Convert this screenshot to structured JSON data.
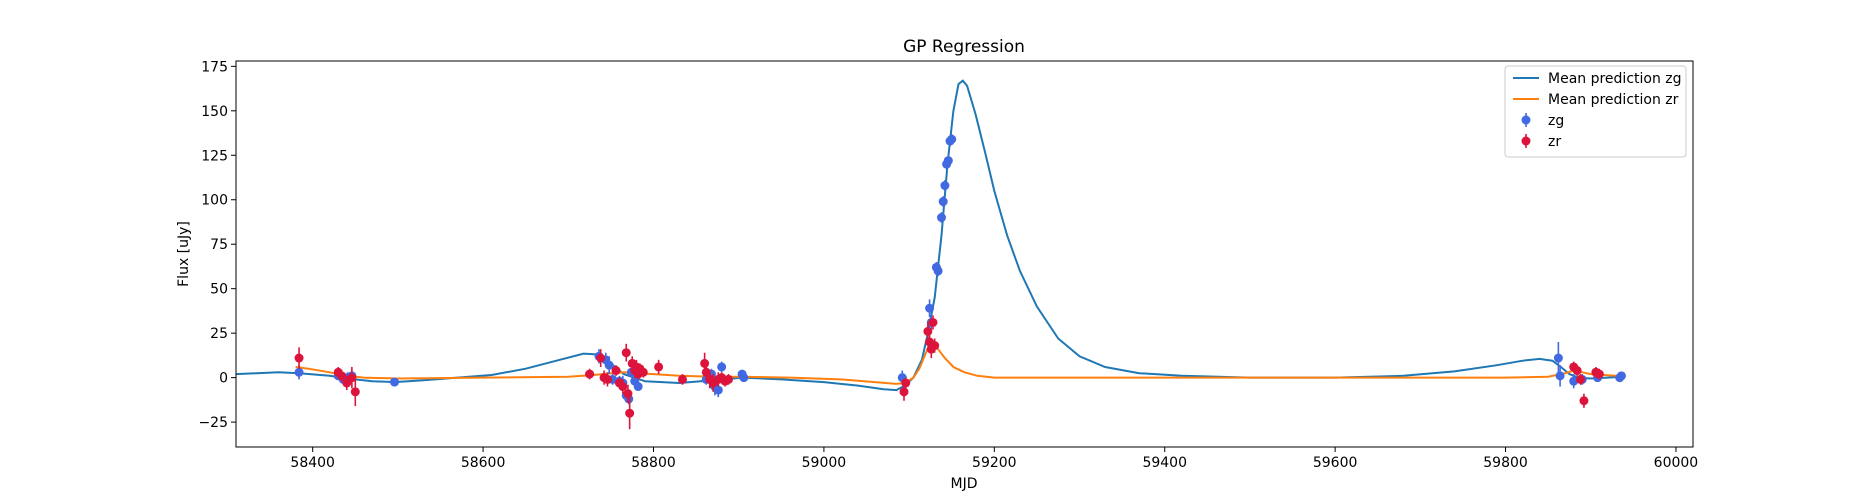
{
  "chart_data": {
    "type": "line",
    "title": "GP Regression",
    "xlabel": "MJD",
    "ylabel": "Flux [uJy]",
    "xlim": [
      58310,
      60020
    ],
    "ylim": [
      -39,
      178
    ],
    "xticks": [
      58400,
      58600,
      58800,
      59000,
      59200,
      59400,
      59600,
      59800,
      60000
    ],
    "yticks": [
      -25,
      0,
      25,
      50,
      75,
      100,
      125,
      150,
      175
    ],
    "grid": false,
    "legend_position": "top-right",
    "colors": {
      "zg_line": "#1f77b4",
      "zr_line": "#ff7f0e",
      "zg_points": "#4169e1",
      "zr_points": "#dc143c"
    },
    "lines": [
      {
        "name": "Mean prediction zg",
        "color": "#1f77b4",
        "points": [
          [
            58310,
            2
          ],
          [
            58360,
            3
          ],
          [
            58384,
            2.5
          ],
          [
            58420,
            1
          ],
          [
            58440,
            -0.5
          ],
          [
            58470,
            -2
          ],
          [
            58496,
            -2.5
          ],
          [
            58530,
            -1.5
          ],
          [
            58570,
            0
          ],
          [
            58610,
            1.5
          ],
          [
            58650,
            5
          ],
          [
            58690,
            10
          ],
          [
            58718,
            13.5
          ],
          [
            58735,
            13
          ],
          [
            58750,
            8
          ],
          [
            58765,
            2
          ],
          [
            58790,
            -2
          ],
          [
            58830,
            -3
          ],
          [
            58870,
            -1.5
          ],
          [
            58905,
            0
          ],
          [
            58950,
            -1
          ],
          [
            59000,
            -2.5
          ],
          [
            59040,
            -4.5
          ],
          [
            59070,
            -6.5
          ],
          [
            59085,
            -7
          ],
          [
            59095,
            -4.5
          ],
          [
            59105,
            0
          ],
          [
            59115,
            10
          ],
          [
            59122,
            25
          ],
          [
            59130,
            45
          ],
          [
            59138,
            80
          ],
          [
            59145,
            120
          ],
          [
            59152,
            150
          ],
          [
            59158,
            165
          ],
          [
            59163,
            167
          ],
          [
            59168,
            164
          ],
          [
            59178,
            148
          ],
          [
            59190,
            125
          ],
          [
            59200,
            105
          ],
          [
            59215,
            80
          ],
          [
            59230,
            60
          ],
          [
            59250,
            40
          ],
          [
            59275,
            22
          ],
          [
            59300,
            12
          ],
          [
            59330,
            6
          ],
          [
            59370,
            2.5
          ],
          [
            59420,
            1
          ],
          [
            59500,
            0
          ],
          [
            59600,
            0
          ],
          [
            59680,
            1
          ],
          [
            59740,
            3.5
          ],
          [
            59790,
            7
          ],
          [
            59820,
            9.5
          ],
          [
            59840,
            10.5
          ],
          [
            59855,
            9.5
          ],
          [
            59865,
            6
          ],
          [
            59875,
            2
          ],
          [
            59885,
            0
          ],
          [
            59900,
            -0.5
          ],
          [
            59920,
            0
          ],
          [
            59936,
            0.5
          ]
        ]
      },
      {
        "name": "Mean prediction zr",
        "color": "#ff7f0e",
        "points": [
          [
            58380,
            6
          ],
          [
            58395,
            5
          ],
          [
            58420,
            3
          ],
          [
            58440,
            1
          ],
          [
            58460,
            0
          ],
          [
            58500,
            -0.5
          ],
          [
            58600,
            0
          ],
          [
            58700,
            0.5
          ],
          [
            58730,
            1.5
          ],
          [
            58750,
            2.5
          ],
          [
            58765,
            3
          ],
          [
            58780,
            2.5
          ],
          [
            58800,
            2
          ],
          [
            58830,
            1
          ],
          [
            58870,
            0.5
          ],
          [
            58905,
            0.5
          ],
          [
            58960,
            0
          ],
          [
            59020,
            -1
          ],
          [
            59060,
            -2.5
          ],
          [
            59085,
            -3.5
          ],
          [
            59095,
            -3
          ],
          [
            59105,
            0
          ],
          [
            59112,
            5
          ],
          [
            59118,
            12
          ],
          [
            59124,
            19
          ],
          [
            59128,
            19.5
          ],
          [
            59134,
            16
          ],
          [
            59142,
            11
          ],
          [
            59152,
            6
          ],
          [
            59165,
            3
          ],
          [
            59180,
            1
          ],
          [
            59200,
            0
          ],
          [
            59300,
            0
          ],
          [
            59600,
            0
          ],
          [
            59800,
            0
          ],
          [
            59850,
            0.5
          ],
          [
            59870,
            2.5
          ],
          [
            59880,
            4
          ],
          [
            59890,
            3
          ],
          [
            59900,
            2
          ],
          [
            59915,
            1.5
          ],
          [
            59930,
            1
          ]
        ]
      }
    ],
    "series": [
      {
        "name": "zg",
        "color": "#4169e1",
        "points": [
          [
            58384,
            3,
            4
          ],
          [
            58430,
            1,
            2
          ],
          [
            58436,
            -1,
            2
          ],
          [
            58441,
            0,
            3
          ],
          [
            58446,
            1,
            3
          ],
          [
            58496,
            -2.5,
            1.5
          ],
          [
            58736,
            12,
            4
          ],
          [
            58744,
            10,
            4
          ],
          [
            58748,
            7,
            5
          ],
          [
            58752,
            -1,
            3
          ],
          [
            58760,
            -2,
            3
          ],
          [
            58764,
            -3,
            4
          ],
          [
            58768,
            -10,
            3
          ],
          [
            58771,
            -12,
            3
          ],
          [
            58774,
            3,
            2
          ],
          [
            58778,
            -2,
            2
          ],
          [
            58782,
            -5,
            2
          ],
          [
            58862,
            -1,
            3
          ],
          [
            58868,
            2,
            3
          ],
          [
            58872,
            -5,
            5
          ],
          [
            58876,
            -7,
            4
          ],
          [
            58880,
            6,
            3
          ],
          [
            58904,
            2,
            2
          ],
          [
            58906,
            0,
            2
          ],
          [
            59092,
            0,
            4
          ],
          [
            59124,
            39,
            5
          ],
          [
            59126,
            31,
            4
          ],
          [
            59132,
            62,
            3
          ],
          [
            59134,
            60,
            3
          ],
          [
            59138,
            90,
            3
          ],
          [
            59140,
            99,
            3
          ],
          [
            59142,
            108,
            3
          ],
          [
            59144,
            120,
            3
          ],
          [
            59146,
            122,
            3
          ],
          [
            59148,
            133,
            3
          ],
          [
            59150,
            134,
            3
          ],
          [
            59862,
            11,
            9
          ],
          [
            59864,
            1,
            6
          ],
          [
            59880,
            -2,
            4
          ],
          [
            59890,
            -1,
            3
          ],
          [
            59908,
            0,
            2
          ],
          [
            59934,
            0,
            2
          ],
          [
            59936,
            1,
            2
          ]
        ]
      },
      {
        "name": "zr",
        "color": "#dc143c",
        "points": [
          [
            58384,
            11,
            6
          ],
          [
            58430,
            3,
            3
          ],
          [
            58434,
            1,
            3
          ],
          [
            58440,
            -3,
            4
          ],
          [
            58446,
            0,
            6
          ],
          [
            58450,
            -8,
            8
          ],
          [
            58725,
            2,
            3
          ],
          [
            58738,
            11,
            5
          ],
          [
            58742,
            0,
            4
          ],
          [
            58746,
            -1,
            4
          ],
          [
            58756,
            4,
            3
          ],
          [
            58760,
            -3,
            3
          ],
          [
            58764,
            -5,
            4
          ],
          [
            58768,
            14,
            5
          ],
          [
            58770,
            -9,
            5
          ],
          [
            58772,
            -20,
            9
          ],
          [
            58775,
            8,
            4
          ],
          [
            58778,
            4,
            4
          ],
          [
            58780,
            6,
            4
          ],
          [
            58782,
            2,
            3
          ],
          [
            58784,
            5,
            3
          ],
          [
            58788,
            3,
            3
          ],
          [
            58806,
            6,
            4
          ],
          [
            58834,
            -1,
            3
          ],
          [
            58860,
            8,
            6
          ],
          [
            58862,
            3,
            5
          ],
          [
            58866,
            -1,
            5
          ],
          [
            58870,
            -3,
            5
          ],
          [
            58876,
            -1,
            4
          ],
          [
            58880,
            0,
            3
          ],
          [
            58884,
            -2,
            3
          ],
          [
            58888,
            -1,
            3
          ],
          [
            59094,
            -8,
            5
          ],
          [
            59096,
            -3,
            3
          ],
          [
            59122,
            26,
            5
          ],
          [
            59124,
            20,
            5
          ],
          [
            59126,
            16,
            5
          ],
          [
            59128,
            31,
            4
          ],
          [
            59130,
            18,
            4
          ],
          [
            59880,
            6,
            3
          ],
          [
            59884,
            4,
            3
          ],
          [
            59888,
            -1,
            3
          ],
          [
            59892,
            -13,
            4
          ],
          [
            59906,
            3,
            3
          ],
          [
            59910,
            2,
            3
          ]
        ]
      }
    ]
  },
  "legend": {
    "items": [
      {
        "label": "Mean prediction zg",
        "kind": "line",
        "color": "#1f77b4"
      },
      {
        "label": "Mean prediction zr",
        "kind": "line",
        "color": "#ff7f0e"
      },
      {
        "label": "zg",
        "kind": "marker",
        "color": "#4169e1"
      },
      {
        "label": "zr",
        "kind": "marker",
        "color": "#dc143c"
      }
    ]
  }
}
